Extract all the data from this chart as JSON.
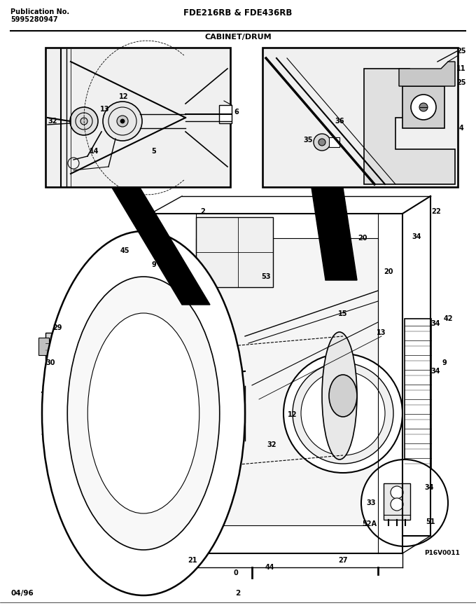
{
  "pub_label": "Publication No.",
  "pub_number": "5995280947",
  "title_center": "FDE216RB & FDE436RB",
  "subtitle": "CABINET/DRUM",
  "footer_left": "04/96",
  "footer_center": "2",
  "watermark": "P16V0011",
  "bg_color": "#ffffff",
  "text_color": "#000000",
  "line_color": "#000000",
  "fig_width": 6.8,
  "fig_height": 8.68,
  "dpi": 100
}
